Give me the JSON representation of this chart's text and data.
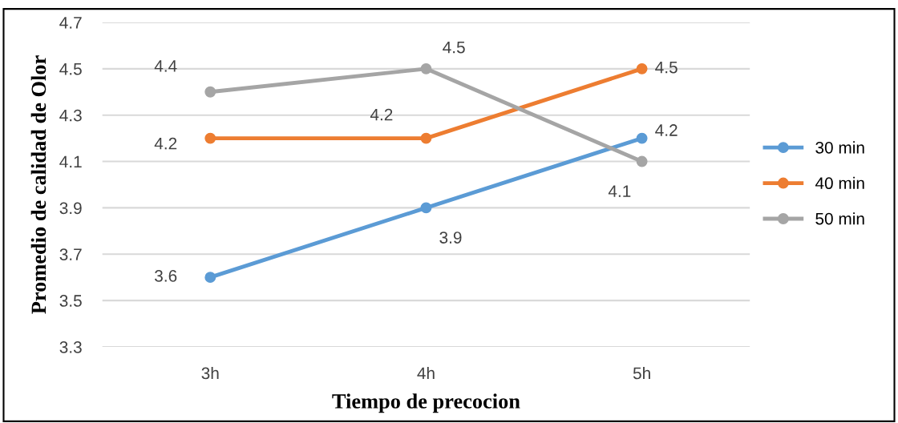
{
  "chart_data": {
    "type": "line",
    "xlabel": "Tiempo de precocion",
    "ylabel": "Promedio de calidad de Olor",
    "categories": [
      "3h",
      "4h",
      "5h"
    ],
    "series": [
      {
        "name": "30 min",
        "color": "#5b9bd5",
        "values": [
          3.6,
          3.9,
          4.2
        ]
      },
      {
        "name": "40 min",
        "color": "#ed7d31",
        "values": [
          4.2,
          4.2,
          4.5
        ]
      },
      {
        "name": "50 min",
        "color": "#a5a5a5",
        "values": [
          4.4,
          4.5,
          4.1
        ]
      }
    ],
    "ylim": [
      3.3,
      4.7
    ],
    "yticks": [
      3.3,
      3.5,
      3.7,
      3.9,
      4.1,
      4.3,
      4.5,
      4.7
    ],
    "grid": "y",
    "legend": "right",
    "marker": "circle",
    "line_style": "solid",
    "data_labels": true
  }
}
